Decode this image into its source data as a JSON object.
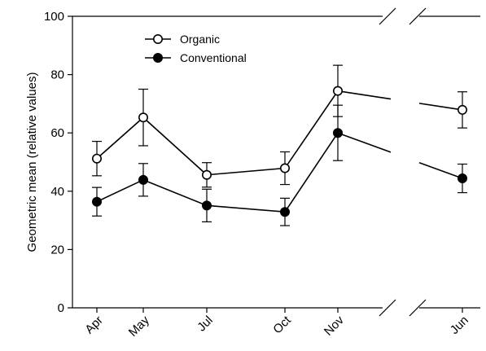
{
  "chart_data": {
    "type": "line",
    "categories": [
      "Apr",
      "May",
      "Jul",
      "Oct",
      "Nov",
      "Jun"
    ],
    "ylabel": "Geometric mean (relative values)",
    "xlabel": "",
    "ylim": [
      0,
      100
    ],
    "yticks": [
      0,
      20,
      40,
      60,
      80,
      100
    ],
    "axis_break": "between Nov and Jun",
    "legend_position": "top-center",
    "series": [
      {
        "name": "Organic",
        "marker": "open-circle",
        "values": [
          51.2,
          65.3,
          45.6,
          47.9,
          74.4,
          67.9
        ],
        "errors": [
          5.9,
          9.7,
          4.2,
          5.6,
          8.8,
          6.2
        ]
      },
      {
        "name": "Conventional",
        "marker": "filled-circle",
        "values": [
          36.4,
          43.9,
          35.1,
          32.9,
          60.0,
          44.4
        ],
        "errors": [
          4.9,
          5.6,
          5.6,
          4.7,
          9.5,
          4.9
        ]
      }
    ]
  }
}
